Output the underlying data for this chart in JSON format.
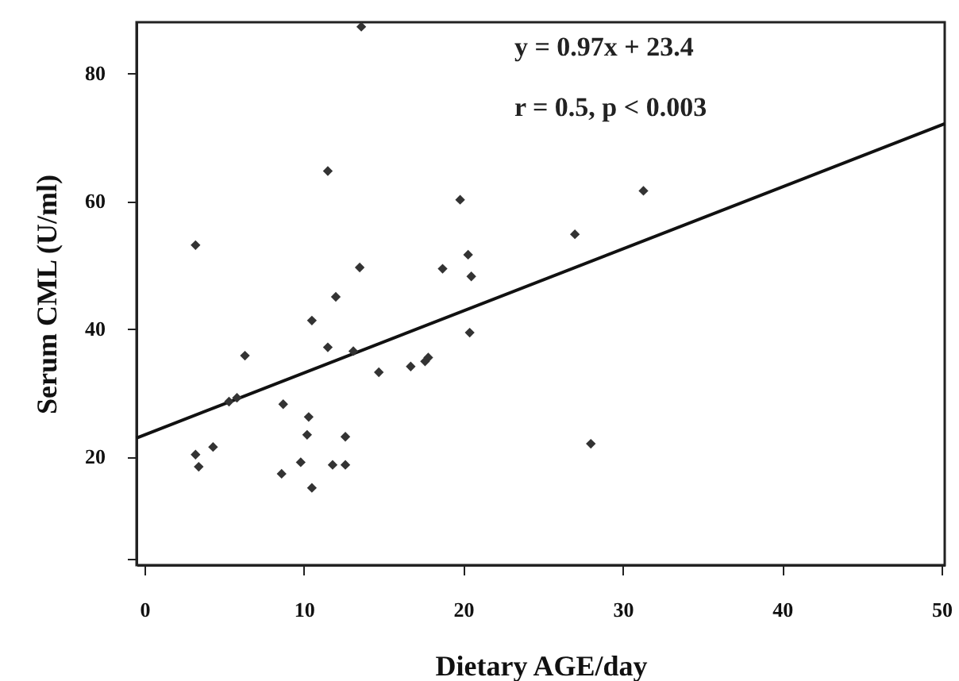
{
  "chart_data": {
    "type": "scatter",
    "xlabel": "Dietary AGE/day",
    "ylabel": "Serum CML (U/ml)",
    "annotations": [
      "y = 0.97x + 23.4",
      "r = 0.5,  p < 0.003"
    ],
    "xlim": [
      -0.5,
      50.2
    ],
    "xticks": [
      0,
      10,
      20,
      30,
      40,
      50
    ],
    "ylim": [
      3,
      88
    ],
    "yticks": [
      {
        "value": 4,
        "label": null
      },
      20,
      40,
      60,
      80
    ],
    "grid": false,
    "series": [
      {
        "marker": "diamond",
        "color": "#333333",
        "x": [
          13.6,
          11.5,
          19.8,
          3.2,
          13.5,
          18.7,
          20.3,
          20.5,
          12.0,
          31.3,
          27.0,
          28.0,
          10.5,
          20.4,
          6.3,
          11.5,
          13.1,
          14.7,
          16.7,
          17.8,
          17.6,
          5.3,
          5.8,
          8.7,
          10.3,
          10.2,
          12.6,
          3.2,
          3.4,
          4.3,
          8.6,
          9.8,
          11.8,
          12.6,
          10.5
        ],
        "values": [
          87.3,
          64.7,
          60.2,
          53.1,
          49.6,
          49.4,
          51.6,
          48.2,
          45.0,
          61.6,
          54.8,
          22.0,
          41.3,
          39.4,
          35.8,
          37.1,
          36.5,
          33.2,
          34.1,
          35.5,
          34.9,
          28.6,
          29.2,
          28.2,
          26.2,
          23.4,
          23.1,
          20.3,
          18.4,
          21.5,
          17.3,
          19.1,
          18.7,
          18.7,
          15.1
        ]
      },
      {
        "type": "line",
        "color": "#111111",
        "x": [
          -0.5,
          50.2
        ],
        "values": [
          22.9,
          72.1
        ]
      }
    ]
  }
}
